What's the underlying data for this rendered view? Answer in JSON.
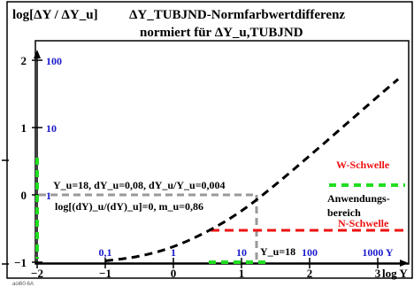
{
  "chart_data": {
    "type": "line",
    "title": "ΔY_TUBJND-Normfarbwertdifferenz",
    "subtitle": "normiert für ΔY_u,TUBJND",
    "ylabel": "log[ΔY / ΔY_u]",
    "xlabel": "log Y",
    "xlim": [
      -2,
      3.3
    ],
    "ylim": [
      -1,
      2.3
    ],
    "y_ticks": [
      {
        "value": -1,
        "label": "−1",
        "blue": ""
      },
      {
        "value": 0,
        "label": "0",
        "blue": "1"
      },
      {
        "value": 1,
        "label": "1",
        "blue": "10"
      },
      {
        "value": 2,
        "label": "2",
        "blue": "100"
      }
    ],
    "x_ticks": [
      {
        "value": -2,
        "label": "−2",
        "blue": ""
      },
      {
        "value": -1,
        "label": "−1",
        "blue": "0,1"
      },
      {
        "value": 0,
        "label": "0",
        "blue": "1"
      },
      {
        "value": 1,
        "label": "1",
        "blue": "10"
      },
      {
        "value": 2,
        "label": "2",
        "blue": "100"
      },
      {
        "value": 3,
        "label": "3",
        "blue": "1000 Y"
      }
    ],
    "series": [
      {
        "x": [
          -1.0,
          -0.5,
          0.0,
          0.5,
          1.0,
          1.5,
          2.0,
          2.5,
          3.0,
          3.3
        ],
        "y": [
          -0.98,
          -0.92,
          -0.78,
          -0.55,
          -0.25,
          0.15,
          0.58,
          1.02,
          1.46,
          1.72
        ]
      }
    ],
    "annotations": {
      "values": "Y_u=18, dY_u=0,08, dY_u/Y_u=0,004",
      "log_line": "log[(dY)_u/(dY)_u]=0, m_u=0,86",
      "yu_point": "Y_u=18"
    },
    "legend": {
      "w_schwelle": "W-Schwelle",
      "range_line1": "Anwendungs-",
      "range_line2": "bereich",
      "n_schwelle": "N-Schwelle"
    }
  },
  "footer": {
    "code": "aoi60-6A"
  }
}
